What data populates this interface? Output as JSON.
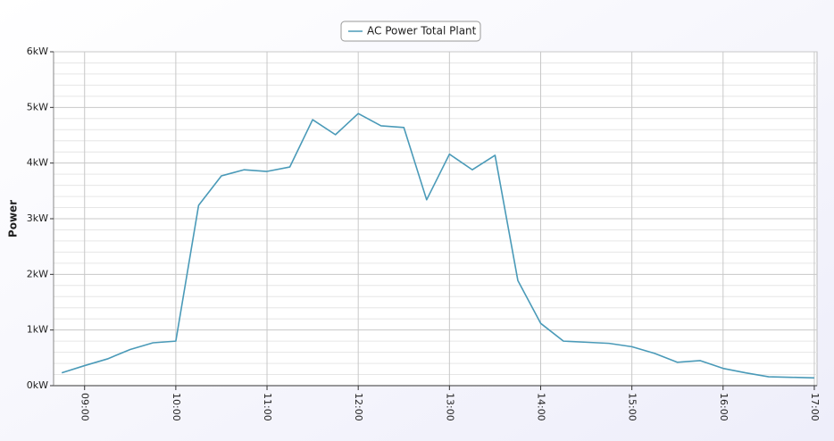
{
  "chart_data": {
    "type": "line",
    "y_label": "Power",
    "x": [
      8.75,
      9,
      9.25,
      9.5,
      9.75,
      10,
      10.25,
      10.5,
      10.75,
      11,
      11.25,
      11.5,
      11.75,
      12,
      12.25,
      12.5,
      12.75,
      13,
      13.25,
      13.5,
      13.75,
      14,
      14.25,
      14.5,
      14.75,
      15,
      15.25,
      15.5,
      15.75,
      16,
      16.25,
      16.5,
      16.75,
      17
    ],
    "series": [
      {
        "name": "AC Power Total Plant",
        "color": "#4a9ab8",
        "values": [
          0.23,
          0.36,
          0.48,
          0.65,
          0.77,
          0.8,
          3.24,
          3.77,
          3.88,
          3.85,
          3.93,
          4.78,
          4.51,
          4.89,
          4.67,
          4.64,
          3.34,
          4.16,
          3.88,
          4.14,
          1.89,
          1.12,
          0.8,
          0.78,
          0.76,
          0.7,
          0.58,
          0.42,
          0.45,
          0.31,
          0.23,
          0.16,
          0.15,
          0.14
        ]
      }
    ],
    "xlim": [
      8.66,
      17.03
    ],
    "xticks": [
      {
        "value": 9,
        "label": "09:00"
      },
      {
        "value": 10,
        "label": "10:00"
      },
      {
        "value": 11,
        "label": "11:00"
      },
      {
        "value": 12,
        "label": "12:00"
      },
      {
        "value": 13,
        "label": "13:00"
      },
      {
        "value": 14,
        "label": "14:00"
      },
      {
        "value": 15,
        "label": "15:00"
      },
      {
        "value": 16,
        "label": "16:00"
      },
      {
        "value": 17,
        "label": "17:00"
      }
    ],
    "ylim": [
      0,
      6
    ],
    "yticks": [
      {
        "value": 0,
        "label": "0kW"
      },
      {
        "value": 1,
        "label": "1kW"
      },
      {
        "value": 2,
        "label": "2kW"
      },
      {
        "value": 3,
        "label": "3kW"
      },
      {
        "value": 4,
        "label": "4kW"
      },
      {
        "value": 5,
        "label": "5kW"
      },
      {
        "value": 6,
        "label": "6kW"
      }
    ],
    "y_minor_ticks": [
      0.2,
      0.4,
      0.6,
      0.8,
      1.2,
      1.4,
      1.6,
      1.8,
      2.2,
      2.4,
      2.6,
      2.8,
      3.2,
      3.4,
      3.6,
      3.8,
      4.2,
      4.4,
      4.6,
      4.8,
      5.2,
      5.4,
      5.6,
      5.8
    ],
    "grid": true
  }
}
